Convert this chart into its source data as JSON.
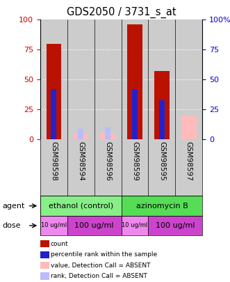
{
  "title": "GDS2050 / 3731_s_at",
  "samples": [
    "GSM98598",
    "GSM98594",
    "GSM98596",
    "GSM98599",
    "GSM98595",
    "GSM98597"
  ],
  "count_values": [
    80,
    0,
    0,
    96,
    57,
    0
  ],
  "rank_values": [
    42,
    0,
    0,
    42,
    33,
    0
  ],
  "absent_value_bars": [
    0,
    5,
    5,
    0,
    0,
    20
  ],
  "absent_rank_bars": [
    0,
    9,
    10,
    0,
    0,
    0
  ],
  "is_absent": [
    false,
    true,
    true,
    false,
    false,
    true
  ],
  "bar_width": 0.55,
  "rank_bar_width": 0.2,
  "ylim": [
    0,
    100
  ],
  "yticks": [
    0,
    25,
    50,
    75,
    100
  ],
  "color_count": "#bb1100",
  "color_rank": "#2222cc",
  "color_absent_value": "#ffbbbb",
  "color_absent_rank": "#bbbbff",
  "agent_groups": [
    {
      "label": "ethanol (control)",
      "start": 0,
      "end": 3,
      "color": "#88ee88"
    },
    {
      "label": "azinomycin B",
      "start": 3,
      "end": 6,
      "color": "#55dd55"
    }
  ],
  "dose_groups": [
    {
      "label": "10 ug/ml",
      "start": 0,
      "end": 1,
      "color": "#ee88ee"
    },
    {
      "label": "100 ug/ml",
      "start": 1,
      "end": 3,
      "color": "#cc44cc"
    },
    {
      "label": "10 ug/ml",
      "start": 3,
      "end": 4,
      "color": "#ee88ee"
    },
    {
      "label": "100 ug/ml",
      "start": 4,
      "end": 6,
      "color": "#cc44cc"
    }
  ],
  "legend_items": [
    {
      "label": "count",
      "color": "#bb1100"
    },
    {
      "label": "percentile rank within the sample",
      "color": "#2222cc"
    },
    {
      "label": "value, Detection Call = ABSENT",
      "color": "#ffbbbb"
    },
    {
      "label": "rank, Detection Call = ABSENT",
      "color": "#bbbbff"
    }
  ],
  "plot_bg": "#cccccc",
  "ylabel_left_color": "#cc0000",
  "ylabel_right_color": "#0000cc",
  "grid_color": "white",
  "separator_color": "black"
}
